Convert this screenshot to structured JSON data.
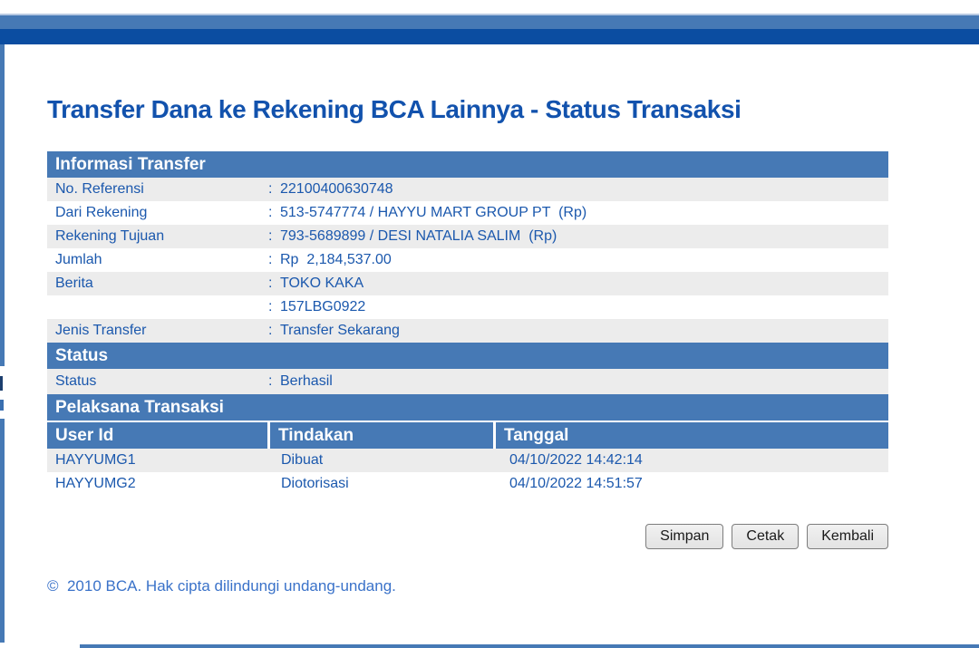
{
  "page": {
    "title": "Transfer Dana ke Rekening BCA Lainnya - Status Transaksi",
    "footer": "©  2010 BCA. Hak cipta dilindungi undang-undang."
  },
  "ui": {
    "colon": ":"
  },
  "colors": {
    "section_header_bg": "#4679b5",
    "top_dark_bar": "#0b4da1",
    "text_blue": "#1b58ad",
    "title_blue": "#1252ad",
    "row_alt_bg": "#ececec",
    "footer_blue": "#3a72c9"
  },
  "informasi_transfer": {
    "header": "Informasi Transfer",
    "rows": [
      {
        "label": "No. Referensi",
        "value": "22100400630748"
      },
      {
        "label": "Dari Rekening",
        "value": "513-5747774 / HAYYU MART GROUP PT  (Rp)"
      },
      {
        "label": "Rekening Tujuan",
        "value": "793-5689899 / DESI NATALIA SALIM  (Rp)"
      },
      {
        "label": "Jumlah",
        "value": "Rp  2,184,537.00"
      },
      {
        "label": "Berita",
        "value": "TOKO KAKA"
      },
      {
        "label": "",
        "value": "157LBG0922"
      },
      {
        "label": "Jenis Transfer",
        "value": "Transfer Sekarang"
      }
    ]
  },
  "status_section": {
    "header": "Status",
    "row": {
      "label": "Status",
      "value": "Berhasil"
    }
  },
  "pelaksana": {
    "header": "Pelaksana Transaksi",
    "columns": [
      "User Id",
      "Tindakan",
      "Tanggal"
    ],
    "rows": [
      {
        "user_id": "HAYYUMG1",
        "tindakan": "Dibuat",
        "tanggal": "04/10/2022 14:42:14"
      },
      {
        "user_id": "HAYYUMG2",
        "tindakan": "Diotorisasi",
        "tanggal": "04/10/2022 14:51:57"
      }
    ]
  },
  "buttons": {
    "simpan": "Simpan",
    "cetak": "Cetak",
    "kembali": "Kembali"
  }
}
